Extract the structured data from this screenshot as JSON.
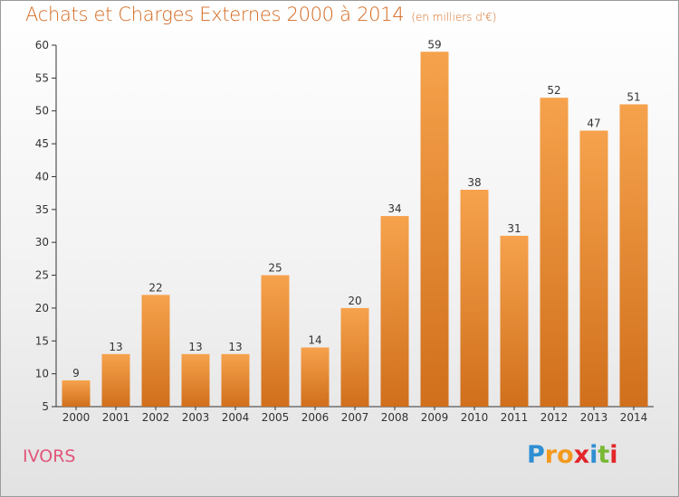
{
  "header": {
    "title": "Achats et Charges Externes 2000 à 2014",
    "unit": "(en milliers d'€)"
  },
  "footer": {
    "town": "IVORS",
    "logo_letters": [
      "P",
      "r",
      "o",
      "x",
      "i",
      "t",
      "i"
    ],
    "logo_colors": [
      "#2f8fd3",
      "#f39a1e",
      "#f39a1e",
      "#e2262b",
      "#2f8fd3",
      "#7ab833",
      "#e2262b"
    ]
  },
  "chart_data": {
    "type": "bar",
    "categories": [
      "2000",
      "2001",
      "2002",
      "2003",
      "2004",
      "2005",
      "2006",
      "2007",
      "2008",
      "2009",
      "2010",
      "2011",
      "2012",
      "2013",
      "2014"
    ],
    "values": [
      9,
      13,
      22,
      13,
      13,
      25,
      14,
      20,
      34,
      59,
      38,
      31,
      52,
      47,
      51
    ],
    "ylim": [
      5,
      60
    ],
    "yticks": [
      5,
      10,
      15,
      20,
      25,
      30,
      35,
      40,
      45,
      50,
      55,
      60
    ],
    "grid": false,
    "bar_color_top": "#f6a24c",
    "bar_color_bottom": "#d06f1c",
    "axis_color": "#333333"
  }
}
